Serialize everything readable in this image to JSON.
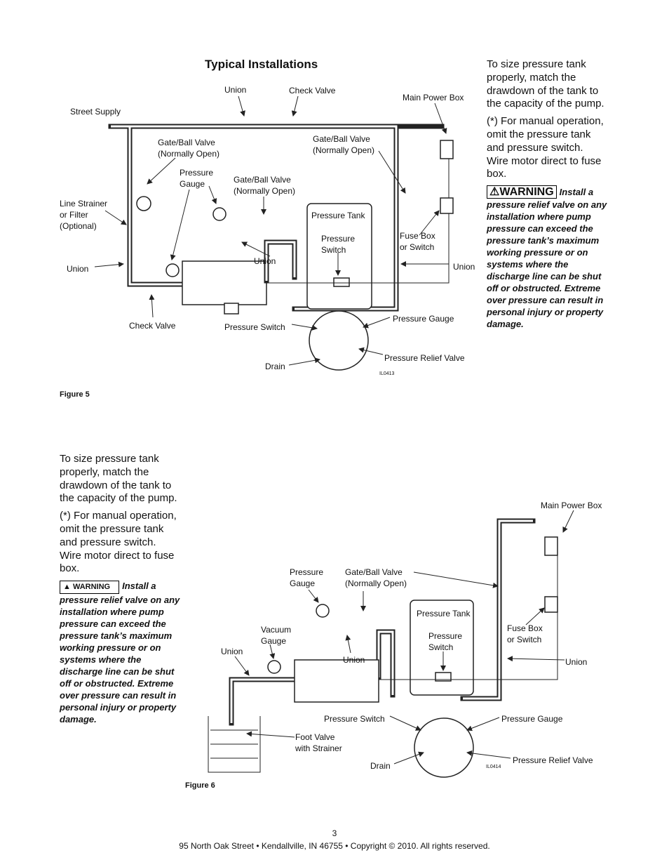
{
  "header": {
    "title": "Typical Installations"
  },
  "figure5": {
    "labels": [
      "Union",
      "Check Valve",
      "Main Power Box",
      "Street Supply",
      "Gate/Ball Valve\n(Normally Open)",
      "Gate/Ball Valve\n(Normally Open)",
      "Pressure\nGauge",
      "Gate/Ball Valve\n(Normally Open)",
      "Line Strainer\nor Filter\n(Optional)",
      "Pressure Tank",
      "Pressure\nSwitch",
      "Fuse Box\nor Switch",
      "Union",
      "Union",
      "Union",
      "Check Valve",
      "Pressure Switch",
      "Pressure Gauge",
      "Pressure Relief Valve",
      "Drain"
    ],
    "code": "IL0413",
    "caption": "Figure 5"
  },
  "sidebar1": {
    "paragraphs": [
      "To size pressure tank properly, match the drawdown of the tank to the capacity of the pump.",
      "(*)  For manual operation, omit the pressure tank and pressure switch.  Wire motor direct to fuse box."
    ],
    "warning_label": "WARNING",
    "warning_text": "Install a pressure relief valve on any installation where pump pressure can exceed the pressure tank’s maximum working pressure or on systems where the discharge line can be shut off or obstructed.  Extreme over pressure can result in personal injury or property damage."
  },
  "figure6": {
    "labels": [
      "Main Power Box",
      "Pressure\nGauge",
      "Gate/Ball Valve\n(Normally Open)",
      "Pressure Tank",
      "Vacuum\nGauge",
      "Pressure\nSwitch",
      "Fuse Box\nor Switch",
      "Union",
      "Union",
      "Union",
      "Pressure Switch",
      "Pressure Gauge",
      "Foot Valve\nwith Strainer",
      "Drain",
      "Pressure Relief Valve"
    ],
    "code": "IL0414",
    "caption": "Figure 6"
  },
  "sidebar2": {
    "paragraphs": [
      "To size pressure tank properly, match the drawdown of the tank to the capacity of the pump.",
      "(*)  For manual operation, omit the pressure tank and pressure switch.  Wire motor direct to fuse box."
    ],
    "warning_label": "WARNING",
    "warning_text": "Install a pressure relief valve on any installation where pump pressure can exceed the pressure tank’s maximum working pressure or on systems where the discharge line can be shut off or obstructed.  Extreme over pressure can result in personal injury or property damage."
  },
  "footer": {
    "page": "3",
    "address": "95 North Oak Street • Kendallville, IN 46755 • Copyright © 2010. All rights reserved."
  }
}
